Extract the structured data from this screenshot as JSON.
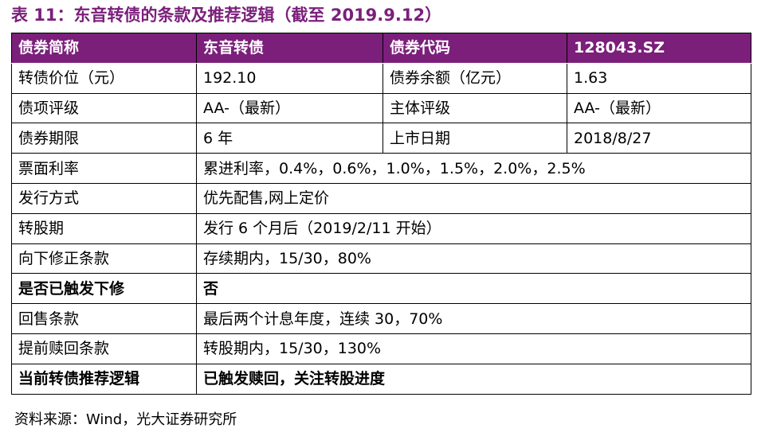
{
  "title": "表 11：东音转债的条款及推荐逻辑（截至 2019.9.12）",
  "table": {
    "header": [
      "债券简称",
      "东音转债",
      "债券代码",
      "128043.SZ"
    ],
    "quad_rows": [
      [
        "转债价位（元）",
        "192.10",
        "债券余额（亿元）",
        "1.63"
      ],
      [
        "债项评级",
        "AA-（最新）",
        "主体评级",
        "AA-（最新）"
      ],
      [
        "债券期限",
        "6 年",
        "上市日期",
        "2018/8/27"
      ]
    ],
    "pair_rows": [
      {
        "label": "票面利率",
        "value": "累进利率，0.4%，0.6%，1.0%，1.5%，2.0%，2.5%",
        "bold": false
      },
      {
        "label": "发行方式",
        "value": "优先配售,网上定价",
        "bold": false
      },
      {
        "label": "转股期",
        "value": "发行 6 个月后（2019/2/11 开始）",
        "bold": false
      },
      {
        "label": "向下修正条款",
        "value": "存续期内，15/30，80%",
        "bold": false
      },
      {
        "label": "是否已触发下修",
        "value": "否",
        "bold": true
      },
      {
        "label": "回售条款",
        "value": "最后两个计息年度，连续 30，70%",
        "bold": false
      },
      {
        "label": "提前赎回条款",
        "value": "转股期内，15/30，130%",
        "bold": false
      },
      {
        "label": "当前转债推荐逻辑",
        "value": "已触发赎回，关注转股进度",
        "bold": true
      }
    ]
  },
  "source": "资料来源：Wind，光大证券研究所",
  "colors": {
    "header_bg": "#7B1F7B",
    "title": "#7B1F7B",
    "header_text": "#FFFFFF"
  }
}
